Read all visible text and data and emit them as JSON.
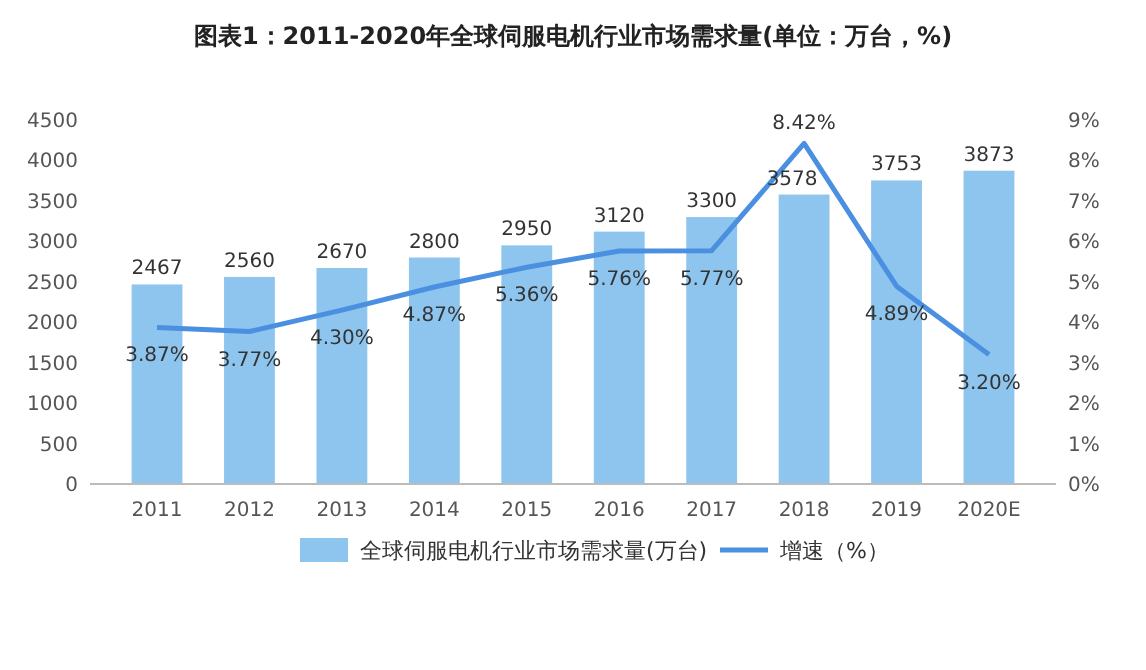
{
  "chart_data": {
    "type": "bar",
    "title": "图表1：2011-2020年全球伺服电机行业市场需求量(单位：万台，%)",
    "categories": [
      "2011",
      "2012",
      "2013",
      "2014",
      "2015",
      "2016",
      "2017",
      "2018",
      "2019",
      "2020E"
    ],
    "series": [
      {
        "name": "全球伺服电机行业市场需求量(万台)",
        "color": "#8ec5ee",
        "values": [
          2467,
          2560,
          2670,
          2800,
          2950,
          3120,
          3300,
          3578,
          3753,
          3873
        ],
        "value_labels": [
          "2467",
          "2560",
          "2670",
          "2800",
          "2950",
          "3120",
          "3300",
          "3578",
          "3753",
          "3873"
        ]
      },
      {
        "name": "增速（%）",
        "type": "line",
        "axis": "y2",
        "color": "#4a8fe0",
        "values": [
          3.87,
          3.77,
          4.3,
          4.87,
          5.36,
          5.76,
          5.77,
          8.42,
          4.89,
          3.2
        ],
        "value_labels": [
          "3.87%",
          "3.77%",
          "4.30%",
          "4.87%",
          "5.36%",
          "5.76%",
          "5.77%",
          "8.42%",
          "4.89%",
          "3.20%"
        ]
      }
    ],
    "ylim": [
      0,
      4500
    ],
    "yticks": [
      0,
      500,
      1000,
      1500,
      2000,
      2500,
      3000,
      3500,
      4000,
      4500
    ],
    "y2lim": [
      0,
      9
    ],
    "y2ticks": [
      {
        "value": 0,
        "label": "0%"
      },
      {
        "value": 1,
        "label": "1%"
      },
      {
        "value": 2,
        "label": "2%"
      },
      {
        "value": 3,
        "label": "3%"
      },
      {
        "value": 4,
        "label": "4%"
      },
      {
        "value": 5,
        "label": "5%"
      },
      {
        "value": 6,
        "label": "6%"
      },
      {
        "value": 7,
        "label": "7%"
      },
      {
        "value": 8,
        "label": "8%"
      },
      {
        "value": 9,
        "label": "9%"
      }
    ],
    "legend": "bottom",
    "grid": false
  }
}
